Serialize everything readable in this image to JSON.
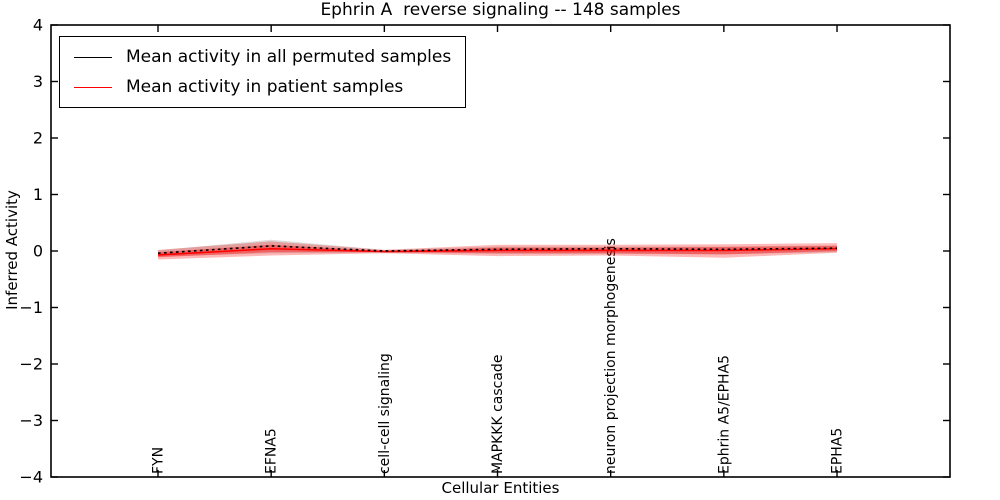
{
  "figure": {
    "background": "#ffffff",
    "axis_color": "#000000"
  },
  "legend": {
    "position": "upper left",
    "entries": [
      {
        "label": "Mean activity in all permuted samples",
        "color": "#000000"
      },
      {
        "label": "Mean activity in patient samples",
        "color": "#ff0000"
      }
    ]
  },
  "chart_data": {
    "type": "line",
    "title": "Ephrin A  reverse signaling -- 148 samples",
    "xlabel": "Cellular Entities",
    "ylabel": "Inferred Activity",
    "ylim": [
      -4,
      4
    ],
    "yticks": [
      4,
      3,
      2,
      1,
      0,
      -1,
      -2,
      -3,
      -4
    ],
    "ytick_labels": [
      "4",
      "3",
      "2",
      "1",
      "0",
      "−1",
      "−2",
      "−3",
      "−4"
    ],
    "grid": false,
    "legend_position": "upper left",
    "categories": [
      "FYN",
      "EFNA5",
      "cell-cell signaling",
      "MAPKKK cascade",
      "neuron projection morphogenesis",
      "Ephrin A5/EPHA5",
      "EPHA5"
    ],
    "series": [
      {
        "name": "Mean activity in all permuted samples",
        "color": "#000000",
        "values": [
          -0.04,
          0.09,
          0.0,
          0.03,
          0.04,
          0.03,
          0.05
        ]
      },
      {
        "name": "Mean activity in patient samples",
        "color": "#ff0000",
        "values": [
          -0.07,
          0.04,
          -0.01,
          0.01,
          0.01,
          0.01,
          0.04
        ]
      }
    ],
    "bands": [
      {
        "name": "permuted-samples-std-band",
        "color": "rgba(0,0,0,0.14)",
        "upper": [
          0.01,
          0.2,
          0.02,
          0.08,
          0.08,
          0.08,
          0.1
        ],
        "lower": [
          -0.1,
          -0.04,
          -0.03,
          -0.05,
          -0.05,
          -0.06,
          -0.02
        ]
      },
      {
        "name": "patient-samples-std-band-outer",
        "color": "rgba(255,0,0,0.28)",
        "upper": [
          0.02,
          0.17,
          0.02,
          0.11,
          0.11,
          0.12,
          0.14
        ],
        "lower": [
          -0.15,
          -0.08,
          -0.04,
          -0.09,
          -0.08,
          -0.12,
          -0.03
        ]
      },
      {
        "name": "patient-samples-std-band-inner",
        "color": "rgba(255,0,0,0.38)",
        "upper": [
          -0.02,
          0.11,
          0.0,
          0.06,
          0.06,
          0.07,
          0.09
        ],
        "lower": [
          -0.11,
          -0.02,
          -0.02,
          -0.04,
          -0.04,
          -0.06,
          0.0
        ]
      }
    ]
  }
}
